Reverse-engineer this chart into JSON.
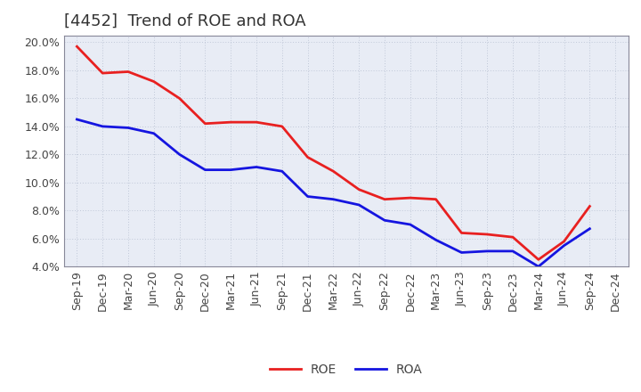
{
  "title": "[4452]  Trend of ROE and ROA",
  "x_labels": [
    "Sep-19",
    "Dec-19",
    "Mar-20",
    "Jun-20",
    "Sep-20",
    "Dec-20",
    "Mar-21",
    "Jun-21",
    "Sep-21",
    "Dec-21",
    "Mar-22",
    "Jun-22",
    "Sep-22",
    "Dec-22",
    "Mar-23",
    "Jun-23",
    "Sep-23",
    "Dec-23",
    "Mar-24",
    "Jun-24",
    "Sep-24",
    "Dec-24"
  ],
  "ROE": [
    19.7,
    17.8,
    17.9,
    17.2,
    16.0,
    14.2,
    14.3,
    14.3,
    14.0,
    11.8,
    10.8,
    9.5,
    8.8,
    8.9,
    8.8,
    6.4,
    6.3,
    6.1,
    4.5,
    5.8,
    8.3,
    null
  ],
  "ROA": [
    14.5,
    14.0,
    13.9,
    13.5,
    12.0,
    10.9,
    10.9,
    11.1,
    10.8,
    9.0,
    8.8,
    8.4,
    7.3,
    7.0,
    5.9,
    5.0,
    5.1,
    5.1,
    4.0,
    5.5,
    6.7,
    null
  ],
  "roe_color": "#e82020",
  "roa_color": "#1515e0",
  "ylim": [
    4.0,
    20.5
  ],
  "yticks": [
    4.0,
    6.0,
    8.0,
    10.0,
    12.0,
    14.0,
    16.0,
    18.0,
    20.0
  ],
  "plot_bg_color": "#e8ecf5",
  "fig_bg_color": "#ffffff",
  "grid_color": "#ffffff",
  "grid_color2": "#c0c8d8",
  "line_width": 2.0,
  "title_fontsize": 13,
  "tick_fontsize": 9,
  "legend_fontsize": 10,
  "title_color": "#333333",
  "tick_color": "#444444"
}
